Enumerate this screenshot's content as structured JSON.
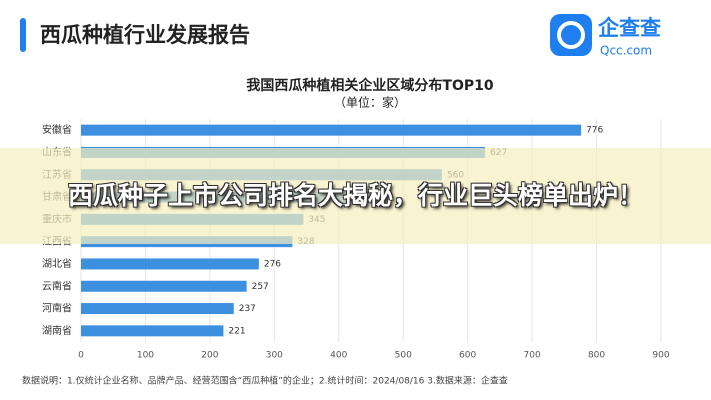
{
  "header": {
    "title": "西瓜种植行业发展报告",
    "logo_name": "企查查",
    "logo_domain": "Qcc.com"
  },
  "chart_data": {
    "type": "bar",
    "orientation": "horizontal",
    "title": "我国西瓜种植相关企业区域分布TOP10",
    "subtitle": "（单位：家）",
    "categories": [
      "安徽省",
      "山东省",
      "江苏省",
      "甘肃省",
      "重庆市",
      "江西省",
      "湖北省",
      "云南省",
      "河南省",
      "湖南省"
    ],
    "values": [
      776,
      627,
      560,
      451,
      345,
      328,
      276,
      257,
      237,
      221
    ],
    "color": "#3d8fe0",
    "xlim": [
      0,
      900
    ],
    "xticks": [
      0,
      100,
      200,
      300,
      400,
      500,
      600,
      700,
      800,
      900
    ],
    "grid": true
  },
  "footnote": "数据说明：1.仅统计企业名称、品牌产品、经营范围含“西瓜种植”的企业；2.统计时间：2024/08/16 3.数据来源：企查查",
  "banner": "西瓜种子上市公司排名大揭秘，行业巨头榜单出炉！"
}
